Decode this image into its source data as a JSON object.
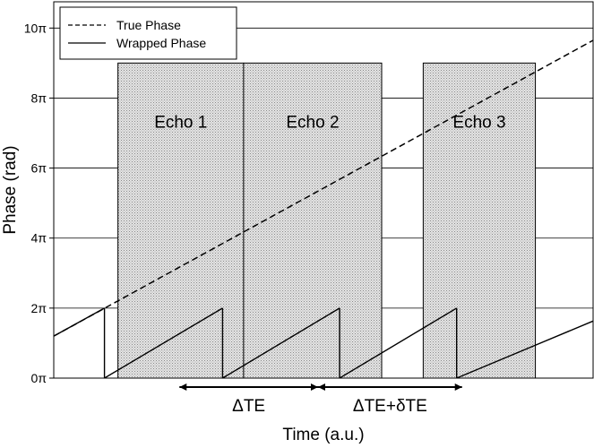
{
  "chart_data": {
    "type": "line",
    "xlabel": "Time (a.u.)",
    "ylabel": "Phase (rad)",
    "xlim": [
      0,
      100
    ],
    "ylim": [
      0,
      10.75
    ],
    "grid": "horizontal",
    "legend_position": "top-left",
    "y_ticks": [
      {
        "value": 0,
        "label": "0π"
      },
      {
        "value": 2,
        "label": "2π"
      },
      {
        "value": 4,
        "label": "4π"
      },
      {
        "value": 6,
        "label": "6π"
      },
      {
        "value": 8,
        "label": "8π"
      },
      {
        "value": 10,
        "label": "10π"
      }
    ],
    "series": [
      {
        "name": "True Phase",
        "style": "dashed",
        "x": [
          0,
          100
        ],
        "y": [
          1.2,
          9.65
        ]
      },
      {
        "name": "Wrapped Phase",
        "style": "solid",
        "segments": [
          [
            [
              0,
              1.2
            ],
            [
              9.4,
              2.0
            ]
          ],
          [
            [
              9.4,
              0
            ],
            [
              31.3,
              2.0
            ]
          ],
          [
            [
              31.3,
              0
            ],
            [
              53.0,
              2.0
            ]
          ],
          [
            [
              53.0,
              0
            ],
            [
              74.7,
              2.0
            ]
          ],
          [
            [
              74.7,
              0
            ],
            [
              100,
              1.63
            ]
          ]
        ]
      }
    ],
    "echoes": [
      {
        "label": "Echo 1",
        "x_start": 11.9,
        "x_end": 35.2,
        "y_top": 9.0
      },
      {
        "label": "Echo 2",
        "x_start": 35.2,
        "x_end": 60.8,
        "y_top": 9.0
      },
      {
        "label": "Echo 3",
        "x_start": 68.5,
        "x_end": 89.3,
        "y_top": 9.0
      }
    ],
    "intervals": [
      {
        "label": "ΔTE",
        "x_start": 23.3,
        "x_end": 49.0
      },
      {
        "label": "ΔTE+δTE",
        "x_start": 49.0,
        "x_end": 75.7
      }
    ],
    "colors": {
      "line": "#000000",
      "echo_fill": "#dcdcdc",
      "grid": "#000000"
    }
  }
}
